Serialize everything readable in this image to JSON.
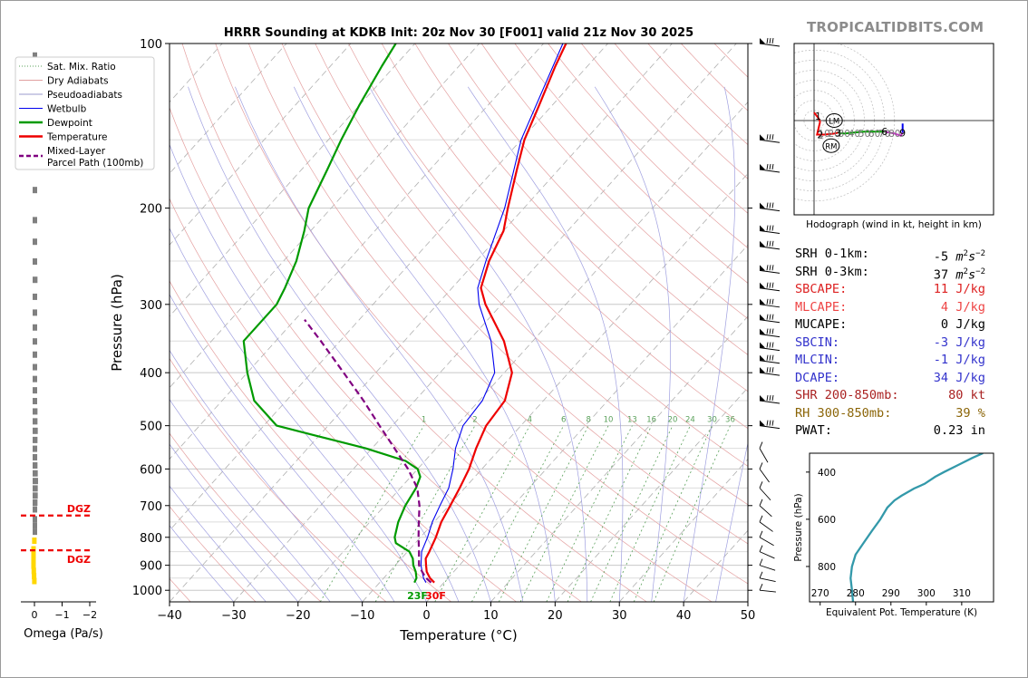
{
  "title": "HRRR Sounding at KDKB Init: 20z Nov 30 [F001] valid 21z Nov 30 2025",
  "brand": "TROPICALTIDBITS.COM",
  "omega": {
    "xlabel": "Omega (Pa/s)",
    "ticks": [
      "0",
      "−1",
      "−2"
    ],
    "dgz_label": "DGZ"
  },
  "surface": {
    "dewpoint_label": "23F",
    "temperature_label": "30F"
  },
  "legend": [
    {
      "label": "Sat. Mix. Ratio",
      "color": "#5aa05a",
      "style": "dotted"
    },
    {
      "label": "Dry Adiabats",
      "color": "#e0a0a0",
      "style": "solid"
    },
    {
      "label": "Pseudoadiabats",
      "color": "#9999cc",
      "style": "solid"
    },
    {
      "label": "Wetbulb",
      "color": "#0000ee",
      "style": "solid"
    },
    {
      "label": "Dewpoint",
      "color": "#009a00",
      "style": "solid"
    },
    {
      "label": "Temperature",
      "color": "#ee0000",
      "style": "solid"
    },
    {
      "label": "Mixed-Layer\nParcel Path (100mb)",
      "color": "#800080",
      "style": "dashed"
    }
  ],
  "mixing_ratio_labels": [
    "1",
    "2",
    "4",
    "6",
    "8",
    "10",
    "13",
    "16",
    "20",
    "24",
    "30",
    "36"
  ],
  "hodograph": {
    "caption": "Hodograph (wind in kt, height in km)",
    "ring_labels": [
      "10",
      "20",
      "30",
      "40",
      "50",
      "60",
      "70",
      "80"
    ],
    "height_labels": [
      "1",
      "2",
      "3",
      "6",
      "9"
    ],
    "lm_label": "LM",
    "rm_label": "RM"
  },
  "stats": [
    {
      "label": "SRH 0-1km:",
      "value": "-5",
      "unit": "m2s-2",
      "color": "#000000"
    },
    {
      "label": "SRH 0-3km:",
      "value": "37",
      "unit": "m2s-2",
      "color": "#000000"
    },
    {
      "label": "SBCAPE:",
      "value": "11 J/kg",
      "color": "#dd2222"
    },
    {
      "label": "MLCAPE:",
      "value": "4 J/kg",
      "color": "#ee4444"
    },
    {
      "label": "MUCAPE:",
      "value": "0 J/kg",
      "color": "#000000"
    },
    {
      "label": "SBCIN:",
      "value": "-3 J/kg",
      "color": "#3333cc"
    },
    {
      "label": "MLCIN:",
      "value": "-1 J/kg",
      "color": "#3333cc"
    },
    {
      "label": "DCAPE:",
      "value": "34 J/kg",
      "color": "#3333cc"
    },
    {
      "label": "SHR 200-850mb:",
      "value": "80 kt",
      "color": "#aa2222"
    },
    {
      "label": "RH 300-850mb:",
      "value": "39 %",
      "color": "#8b6508"
    },
    {
      "label": "PWAT:",
      "value": "0.23 in",
      "color": "#000000"
    }
  ],
  "chart_data": [
    {
      "type": "line",
      "title": "HRRR Sounding at KDKB Init: 20z Nov 30 [F001] valid 21z Nov 30 2025",
      "xlabel": "Temperature (°C)",
      "ylabel": "Pressure (hPa)",
      "xlim": [
        -40,
        50
      ],
      "ylim": [
        1050,
        100
      ],
      "y_scale": "log",
      "skew": true,
      "x_ticks": [
        -40,
        -30,
        -20,
        -10,
        0,
        10,
        20,
        30,
        40,
        50
      ],
      "y_ticks": [
        100,
        200,
        300,
        400,
        500,
        600,
        700,
        800,
        900,
        1000
      ],
      "grid": true,
      "legend_position": "top-left",
      "series": [
        {
          "name": "Temperature",
          "color": "#ee0000",
          "points": [
            [
              968,
              -1.5
            ],
            [
              950,
              -2.8
            ],
            [
              925,
              -4.2
            ],
            [
              900,
              -5.2
            ],
            [
              875,
              -6.2
            ],
            [
              850,
              -6.6
            ],
            [
              800,
              -7.6
            ],
            [
              750,
              -8.9
            ],
            [
              700,
              -9.8
            ],
            [
              650,
              -10.8
            ],
            [
              600,
              -12.0
            ],
            [
              550,
              -13.8
            ],
            [
              500,
              -15.4
            ],
            [
              450,
              -16.0
            ],
            [
              400,
              -18.8
            ],
            [
              350,
              -24.5
            ],
            [
              300,
              -32.5
            ],
            [
              280,
              -35.5
            ],
            [
              250,
              -38.0
            ],
            [
              220,
              -40.0
            ],
            [
              200,
              -42.5
            ],
            [
              170,
              -46.5
            ],
            [
              150,
              -49.5
            ],
            [
              130,
              -52.0
            ],
            [
              110,
              -55.0
            ],
            [
              100,
              -56.5
            ]
          ]
        },
        {
          "name": "Dewpoint",
          "color": "#009a00",
          "points": [
            [
              968,
              -4.6
            ],
            [
              950,
              -4.9
            ],
            [
              925,
              -5.9
            ],
            [
              900,
              -7.2
            ],
            [
              875,
              -8.2
            ],
            [
              850,
              -9.7
            ],
            [
              820,
              -13.0
            ],
            [
              800,
              -14.0
            ],
            [
              750,
              -15.6
            ],
            [
              700,
              -16.8
            ],
            [
              650,
              -17.6
            ],
            [
              620,
              -18.5
            ],
            [
              600,
              -20.0
            ],
            [
              580,
              -23.0
            ],
            [
              550,
              -31.0
            ],
            [
              520,
              -41.0
            ],
            [
              500,
              -48.0
            ],
            [
              450,
              -55.0
            ],
            [
              400,
              -60.0
            ],
            [
              350,
              -65.0
            ],
            [
              300,
              -65.0
            ],
            [
              280,
              -66.0
            ],
            [
              250,
              -68.0
            ],
            [
              220,
              -71.0
            ],
            [
              200,
              -73.5
            ],
            [
              170,
              -76.0
            ],
            [
              150,
              -78.0
            ],
            [
              130,
              -80.0
            ],
            [
              110,
              -82.0
            ],
            [
              100,
              -83.0
            ]
          ]
        },
        {
          "name": "Wetbulb",
          "color": "#0000ee",
          "points": [
            [
              968,
              -2.8
            ],
            [
              950,
              -3.8
            ],
            [
              925,
              -4.9
            ],
            [
              900,
              -6.0
            ],
            [
              850,
              -7.8
            ],
            [
              800,
              -8.9
            ],
            [
              750,
              -10.3
            ],
            [
              700,
              -11.4
            ],
            [
              650,
              -12.5
            ],
            [
              600,
              -14.5
            ],
            [
              550,
              -17.0
            ],
            [
              500,
              -19.0
            ],
            [
              450,
              -19.5
            ],
            [
              400,
              -21.5
            ],
            [
              350,
              -26.5
            ],
            [
              300,
              -33.5
            ],
            [
              280,
              -36.0
            ],
            [
              250,
              -38.5
            ],
            [
              200,
              -43.0
            ],
            [
              150,
              -50.0
            ],
            [
              100,
              -57.0
            ]
          ]
        },
        {
          "name": "Mixed-Layer Parcel Path (100mb)",
          "color": "#800080",
          "points": [
            [
              968,
              -2.0
            ],
            [
              950,
              -3.4
            ],
            [
              925,
              -4.9
            ],
            [
              900,
              -6.3
            ],
            [
              850,
              -8.2
            ],
            [
              800,
              -10.3
            ],
            [
              750,
              -12.4
            ],
            [
              700,
              -14.6
            ],
            [
              650,
              -17.4
            ],
            [
              600,
              -21.5
            ],
            [
              550,
              -26.5
            ],
            [
              500,
              -32.0
            ],
            [
              450,
              -38.0
            ],
            [
              400,
              -45.0
            ],
            [
              350,
              -53.0
            ],
            [
              320,
              -58.5
            ]
          ]
        }
      ]
    },
    {
      "type": "bar",
      "title": "",
      "xlabel": "Omega (Pa/s)",
      "ylabel": "",
      "xlim": [
        0.3,
        -2.0
      ],
      "orientation": "horizontal",
      "dgz_levels_hPa": [
        730,
        845
      ],
      "series": [
        {
          "name": "",
          "color": "#808080",
          "points": [
            [
              105,
              -0.02
            ],
            [
              150,
              -0.05
            ],
            [
              185,
              -0.05
            ],
            [
              210,
              -0.07
            ],
            [
              230,
              -0.09
            ],
            [
              250,
              -0.09
            ],
            [
              270,
              -0.11
            ],
            [
              290,
              -0.08
            ],
            [
              310,
              -0.05
            ],
            [
              330,
              -0.03
            ],
            [
              350,
              -0.05
            ],
            [
              370,
              -0.06
            ],
            [
              390,
              -0.07
            ],
            [
              410,
              -0.08
            ],
            [
              430,
              -0.08
            ],
            [
              450,
              -0.09
            ],
            [
              470,
              -0.11
            ],
            [
              490,
              -0.11
            ],
            [
              510,
              -0.12
            ],
            [
              530,
              -0.11
            ],
            [
              550,
              -0.1
            ],
            [
              570,
              -0.1
            ],
            [
              590,
              -0.11
            ],
            [
              610,
              -0.12
            ],
            [
              630,
              -0.13
            ],
            [
              650,
              -0.12
            ],
            [
              670,
              -0.12
            ],
            [
              690,
              -0.11
            ],
            [
              710,
              -0.1
            ],
            [
              740,
              -0.08
            ],
            [
              760,
              -0.05
            ],
            [
              780,
              -0.02
            ]
          ]
        },
        {
          "name": "",
          "color": "#ffd700",
          "points": [
            [
              810,
              0.02
            ],
            [
              840,
              0.05
            ],
            [
              860,
              0.05
            ],
            [
              880,
              0.05
            ],
            [
              900,
              0.05
            ],
            [
              920,
              0.04
            ],
            [
              940,
              0.03
            ],
            [
              960,
              0.02
            ]
          ]
        }
      ]
    },
    {
      "type": "line",
      "title": "",
      "xlabel": "Equivalent Pot. Temperature (K)",
      "ylabel": "Pressure (hPa)",
      "xlim": [
        267,
        319
      ],
      "ylim": [
        950,
        320
      ],
      "x_ticks": [
        270,
        280,
        290,
        300,
        310
      ],
      "y_ticks": [
        400,
        600,
        800
      ],
      "series": [
        {
          "name": "",
          "color": "#3399aa",
          "points": [
            [
              950,
              279.3
            ],
            [
              900,
              279.0
            ],
            [
              850,
              278.6
            ],
            [
              800,
              279.0
            ],
            [
              750,
              280.0
            ],
            [
              700,
              282.3
            ],
            [
              650,
              284.6
            ],
            [
              600,
              287.0
            ],
            [
              550,
              289.0
            ],
            [
              520,
              291.0
            ],
            [
              500,
              293.0
            ],
            [
              470,
              296.5
            ],
            [
              450,
              299.5
            ],
            [
              420,
              302.5
            ],
            [
              400,
              305.0
            ],
            [
              370,
              309.0
            ],
            [
              340,
              313.0
            ],
            [
              320,
              316.0
            ]
          ]
        }
      ]
    },
    {
      "type": "line",
      "title": "",
      "xlabel": "",
      "ylabel": "",
      "hodograph": true,
      "rings_kt": [
        10,
        20,
        30,
        40,
        50,
        60,
        70,
        80
      ],
      "storm_motion_kt": {
        "LM": [
          20,
          0
        ],
        "RM": [
          17,
          -25
        ]
      },
      "series": [
        {
          "name": "0-1 km",
          "color": "#ee0000",
          "points": [
            [
              0,
              8
            ],
            [
              4,
              3
            ],
            [
              6,
              -1
            ]
          ]
        },
        {
          "name": "1-3 km",
          "color": "#ee0000",
          "points": [
            [
              6,
              -1
            ],
            [
              3,
              -14
            ],
            [
              10,
              -14
            ],
            [
              20,
              -13
            ],
            [
              24,
              -12
            ]
          ]
        },
        {
          "name": "3-6 km",
          "color": "#009a00",
          "points": [
            [
              24,
              -12
            ],
            [
              30,
              -13
            ],
            [
              40,
              -12
            ],
            [
              50,
              -11
            ],
            [
              60,
              -11
            ],
            [
              70,
              -11
            ]
          ]
        },
        {
          "name": "6-9 km",
          "color": "#cc33cc",
          "points": [
            [
              70,
              -11
            ],
            [
              80,
              -13
            ],
            [
              86,
              -15
            ],
            [
              88,
              -12
            ]
          ]
        },
        {
          "name": "9+ km",
          "color": "#0000ee",
          "points": [
            [
              88,
              -12
            ],
            [
              88,
              -3
            ]
          ]
        }
      ]
    }
  ]
}
